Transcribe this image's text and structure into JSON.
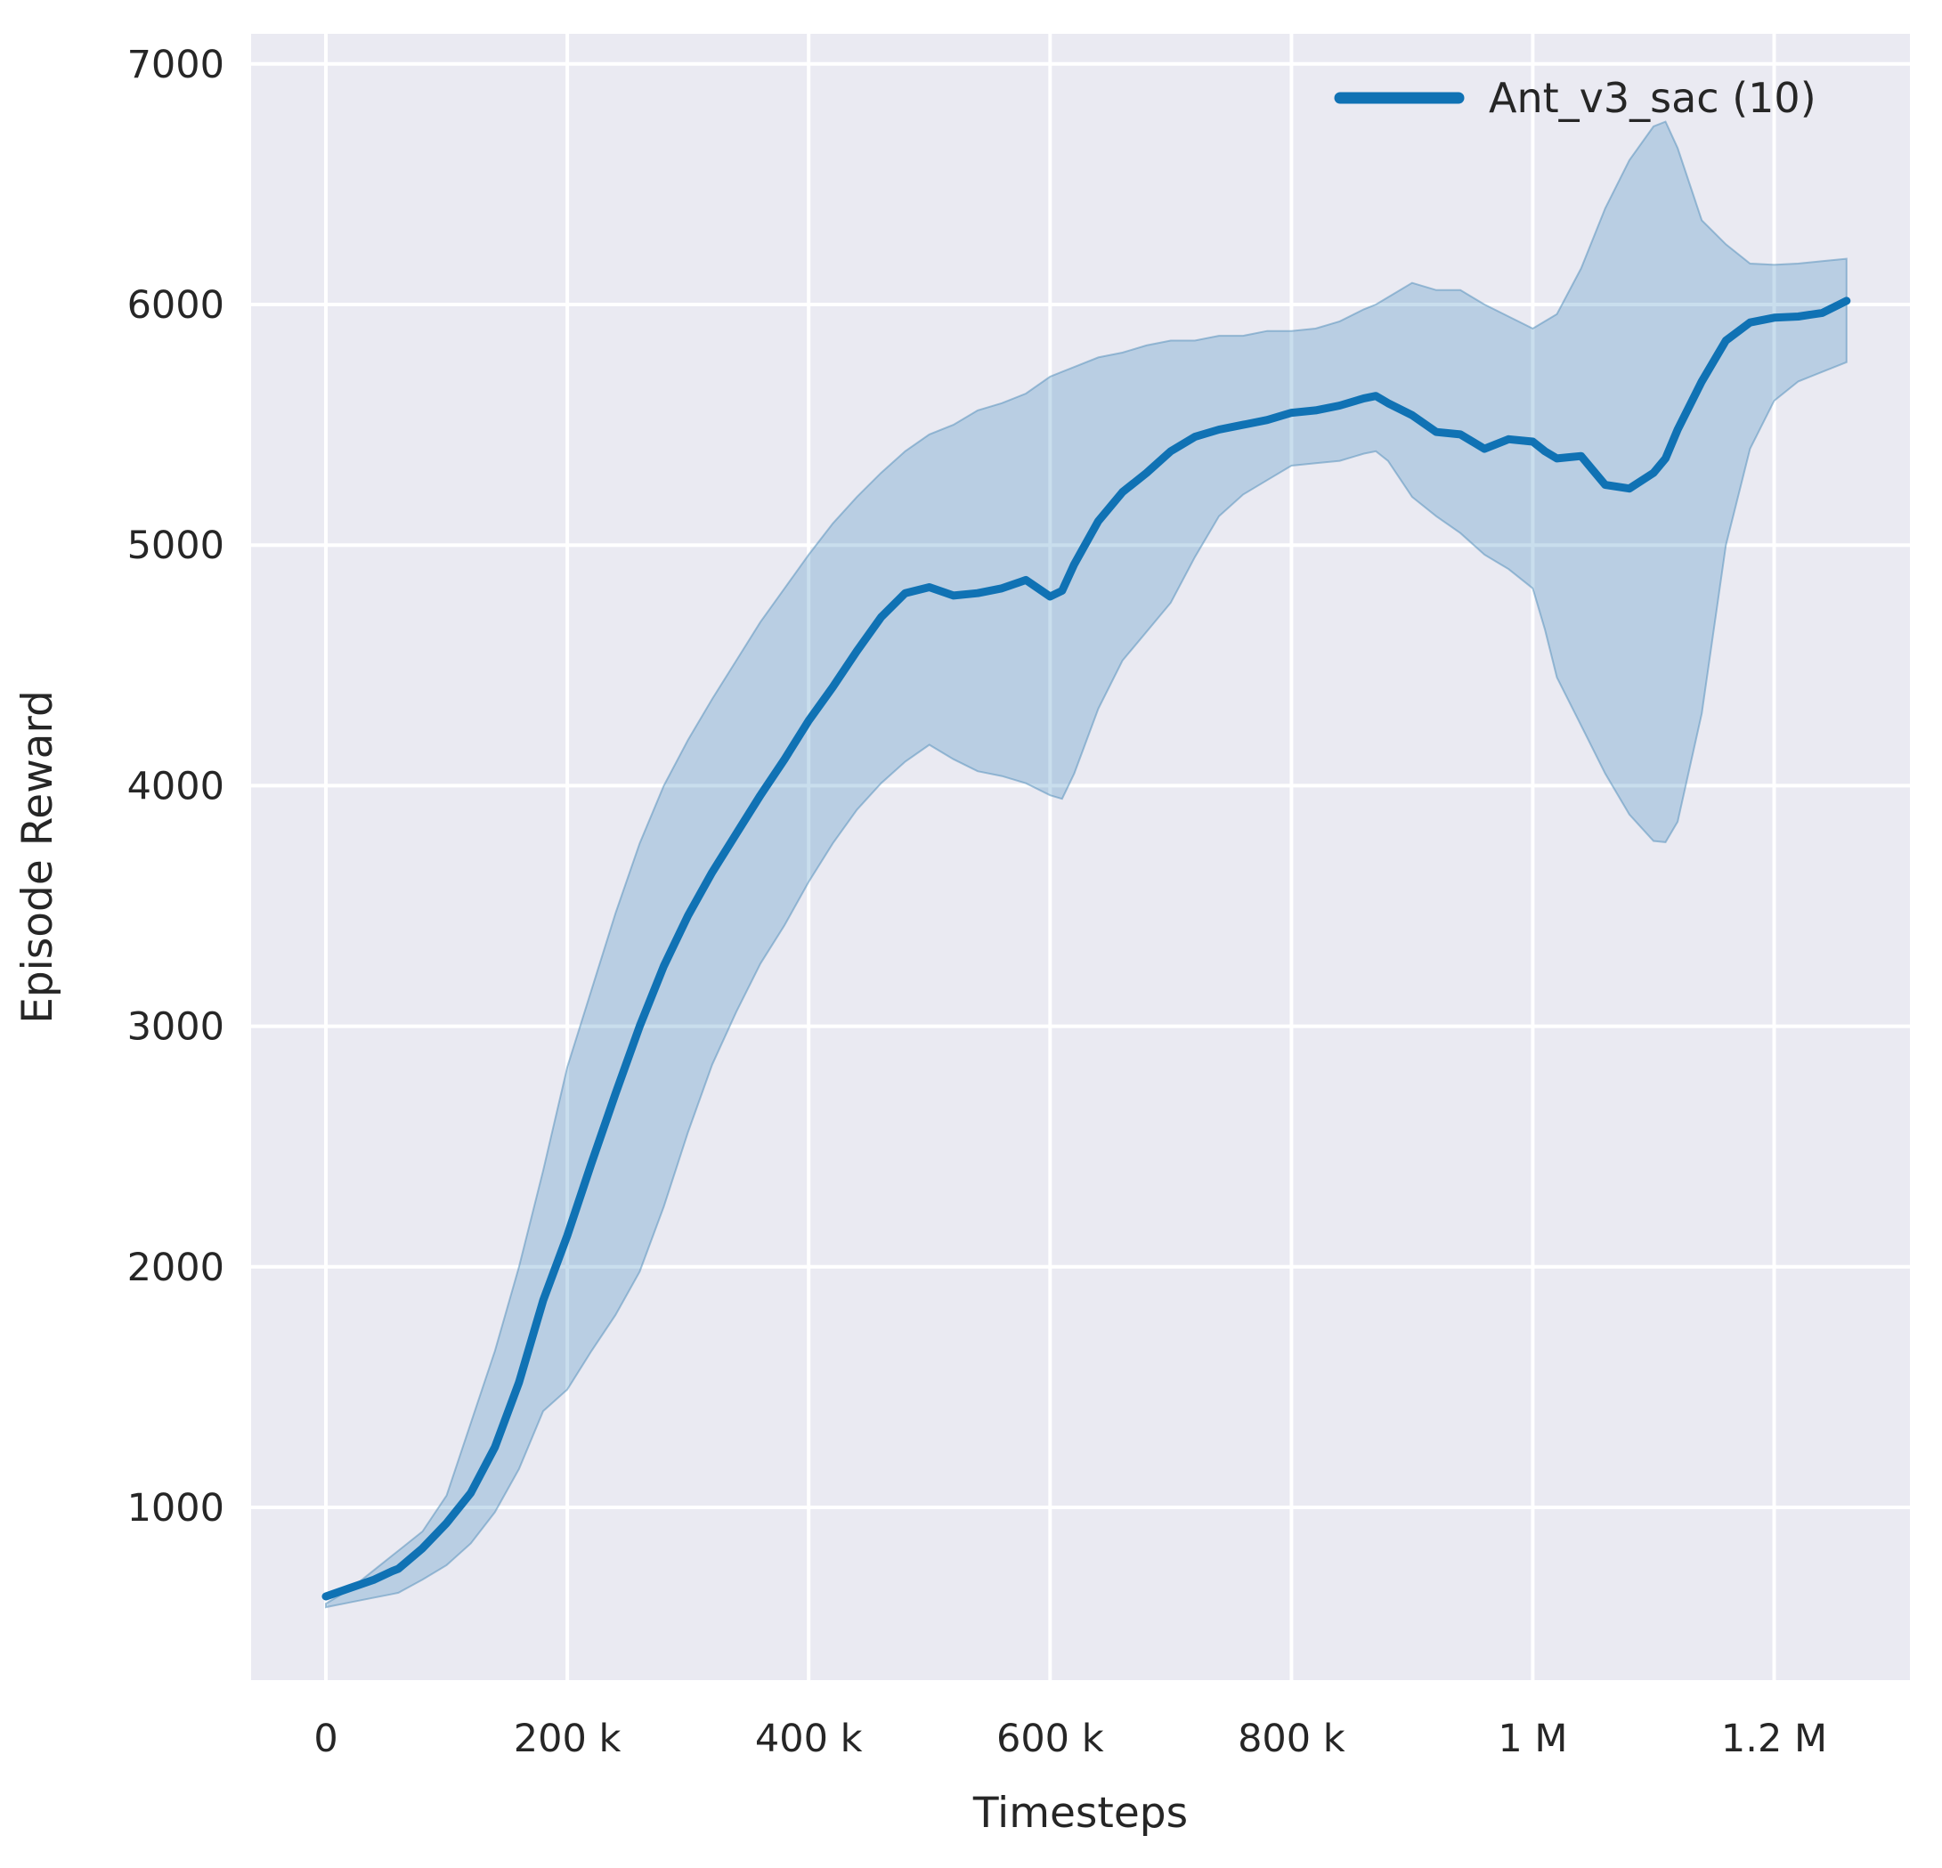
{
  "chart_data": {
    "type": "line",
    "title": "",
    "xlabel": "Timesteps",
    "ylabel": "Episode Reward",
    "grid": "on",
    "legend_position": "upper right",
    "xlim": [
      -62000,
      1312500
    ],
    "ylim": [
      282,
      7125
    ],
    "xticks": {
      "values": [
        0,
        200000,
        400000,
        600000,
        800000,
        1000000,
        1200000
      ],
      "labels": [
        "0",
        "200 k",
        "400 k",
        "600 k",
        "800 k",
        "1 M",
        "1.2 M"
      ]
    },
    "yticks": {
      "values": [
        1000,
        2000,
        3000,
        4000,
        5000,
        6000,
        7000
      ],
      "labels": [
        "1000",
        "2000",
        "3000",
        "4000",
        "5000",
        "6000",
        "7000"
      ]
    },
    "x": [
      0,
      20000,
      40000,
      55000,
      60000,
      80000,
      100000,
      120000,
      140000,
      160000,
      180000,
      200000,
      220000,
      240000,
      260000,
      280000,
      300000,
      320000,
      340000,
      360000,
      380000,
      400000,
      420000,
      440000,
      460000,
      480000,
      500000,
      520000,
      540000,
      560000,
      580000,
      600000,
      610000,
      620000,
      640000,
      660000,
      680000,
      700000,
      720000,
      740000,
      760000,
      780000,
      800000,
      820000,
      840000,
      860000,
      870000,
      880000,
      900000,
      920000,
      940000,
      960000,
      980000,
      1000000,
      1010000,
      1020000,
      1040000,
      1060000,
      1080000,
      1100000,
      1110000,
      1120000,
      1140000,
      1160000,
      1180000,
      1200000,
      1220000,
      1240000,
      1260000
    ],
    "series": [
      {
        "name": "Ant_v3_sac (10)",
        "color": "#1072b4",
        "values": [
          630,
          665,
          700,
          735,
          745,
          830,
          935,
          1060,
          1250,
          1520,
          1860,
          2130,
          2430,
          2720,
          3000,
          3250,
          3460,
          3640,
          3800,
          3960,
          4110,
          4270,
          4410,
          4560,
          4700,
          4800,
          4825,
          4790,
          4800,
          4820,
          4855,
          4786,
          4810,
          4920,
          5100,
          5220,
          5300,
          5390,
          5450,
          5480,
          5500,
          5520,
          5550,
          5560,
          5580,
          5610,
          5620,
          5590,
          5540,
          5470,
          5460,
          5400,
          5440,
          5430,
          5390,
          5360,
          5370,
          5250,
          5235,
          5300,
          5360,
          5480,
          5680,
          5850,
          5925,
          5945,
          5950,
          5965,
          6015
        ],
        "band_lower": [
          585,
          605,
          625,
          640,
          645,
          700,
          760,
          850,
          980,
          1160,
          1400,
          1490,
          1650,
          1800,
          1980,
          2250,
          2560,
          2840,
          3060,
          3260,
          3420,
          3600,
          3760,
          3900,
          4010,
          4100,
          4170,
          4110,
          4060,
          4040,
          4010,
          3960,
          3945,
          4050,
          4320,
          4520,
          4640,
          4760,
          4950,
          5120,
          5210,
          5270,
          5330,
          5340,
          5350,
          5380,
          5390,
          5350,
          5200,
          5120,
          5050,
          4960,
          4900,
          4820,
          4650,
          4450,
          4250,
          4050,
          3880,
          3770,
          3765,
          3850,
          4300,
          5000,
          5400,
          5600,
          5680,
          5720,
          5760
        ],
        "band_upper": [
          600,
          660,
          740,
          800,
          820,
          900,
          1050,
          1350,
          1650,
          2000,
          2400,
          2830,
          3150,
          3470,
          3760,
          4000,
          4190,
          4360,
          4520,
          4680,
          4820,
          4960,
          5090,
          5200,
          5300,
          5390,
          5460,
          5500,
          5560,
          5590,
          5630,
          5700,
          5720,
          5740,
          5780,
          5800,
          5830,
          5850,
          5850,
          5870,
          5870,
          5890,
          5890,
          5900,
          5930,
          5980,
          6000,
          6030,
          6090,
          6060,
          6060,
          6000,
          5950,
          5900,
          5930,
          5960,
          6150,
          6400,
          6600,
          6740,
          6760,
          6650,
          6350,
          6250,
          6170,
          6165,
          6170,
          6180,
          6190
        ]
      }
    ],
    "colors": {
      "figure_background": "#ffffff",
      "axes_background": "#eaeaf2",
      "gridline": "#ffffff",
      "line": "#1072b4",
      "band_fill": "#1f77b4",
      "band_opacity": 0.24,
      "band_edge": "#5b93bd",
      "text": "#262626"
    }
  }
}
